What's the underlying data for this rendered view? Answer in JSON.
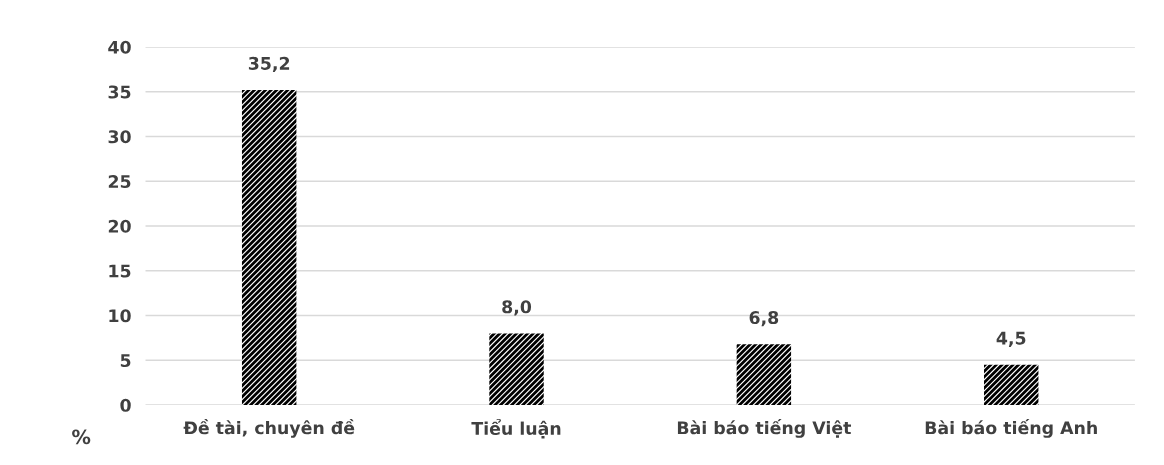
{
  "chart_data": {
    "type": "bar",
    "ylabel": "%",
    "categories": [
      "Đề tài, chuyên đề",
      "Tiểu luận",
      "Bài báo tiếng Việt",
      "Bài báo tiếng Anh"
    ],
    "values": [
      35.2,
      8.0,
      6.8,
      4.5
    ],
    "value_labels": [
      "35,2",
      "8,0",
      "6,8",
      "4,5"
    ],
    "color": "#000000",
    "ylim": [
      0,
      40
    ],
    "yticks": [
      0,
      5,
      10,
      15,
      20,
      25,
      30,
      35,
      40
    ],
    "grid": "y"
  }
}
